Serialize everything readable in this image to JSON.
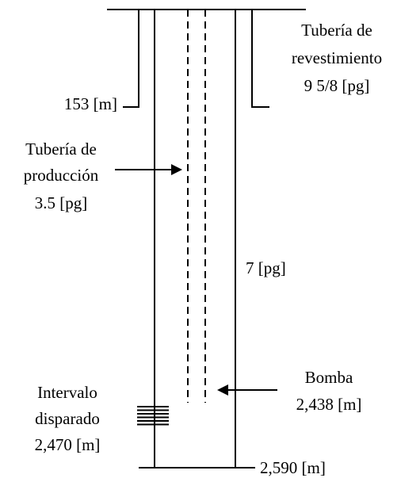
{
  "surface_casing": {
    "label": [
      "Tubería de",
      "revestimiento",
      "9 5/8 [pg]"
    ],
    "depth": "153 [m]"
  },
  "tubing": {
    "label": [
      "Tubería de",
      "producción",
      "3.5 [pg]"
    ]
  },
  "production_casing": {
    "label": "7 [pg]",
    "depth": "2,590 [m]"
  },
  "pump": {
    "label": [
      "Bomba",
      "2,438 [m]"
    ]
  },
  "perforations": {
    "label": [
      "Intervalo",
      "disparado",
      "2,470 [m]"
    ]
  }
}
